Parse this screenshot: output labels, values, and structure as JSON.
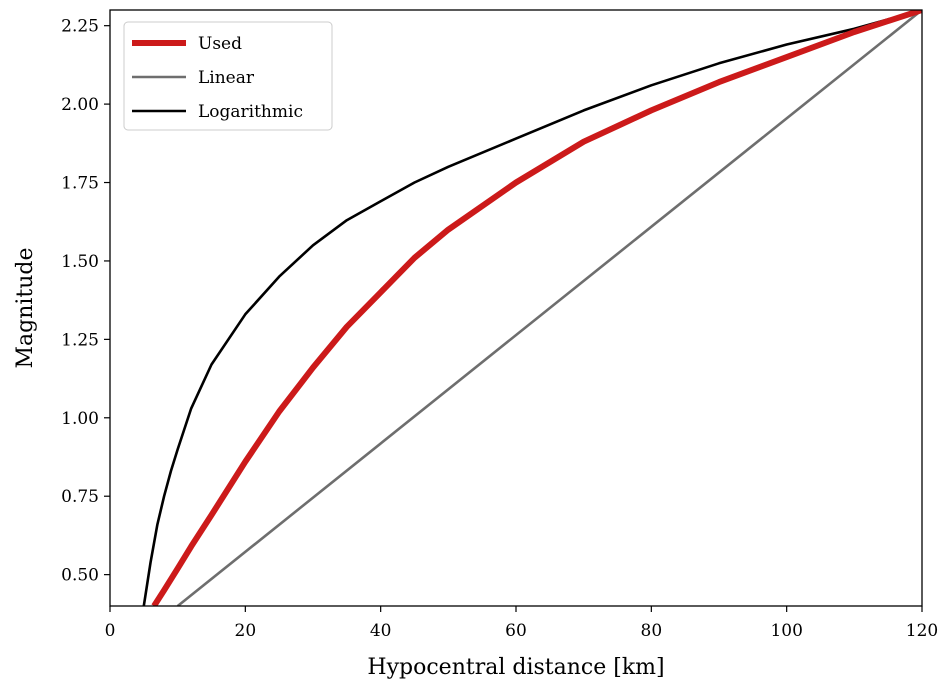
{
  "chart_data": {
    "type": "line",
    "title": "",
    "xlabel": "Hypocentral distance [km]",
    "ylabel": "Magnitude",
    "xlim": [
      0,
      120
    ],
    "ylim": [
      0.4,
      2.3
    ],
    "xticks": [
      0,
      20,
      40,
      60,
      80,
      100,
      120
    ],
    "yticks": [
      0.5,
      0.75,
      1.0,
      1.25,
      1.5,
      1.75,
      2.0,
      2.25
    ],
    "xtick_labels": [
      "0",
      "20",
      "40",
      "60",
      "80",
      "100",
      "120"
    ],
    "ytick_labels": [
      "0.50",
      "0.75",
      "1.00",
      "1.25",
      "1.50",
      "1.75",
      "2.00",
      "2.25"
    ],
    "grid": false,
    "legend_position": "upper-left",
    "series": [
      {
        "name": "Used",
        "color": "#cc1a1a",
        "x": [
          6.5,
          8,
          10,
          12,
          15,
          20,
          25,
          30,
          35,
          40,
          45,
          50,
          60,
          70,
          80,
          90,
          100,
          110,
          120
        ],
        "y": [
          0.4,
          0.45,
          0.52,
          0.59,
          0.69,
          0.86,
          1.02,
          1.16,
          1.29,
          1.4,
          1.51,
          1.6,
          1.75,
          1.88,
          1.98,
          2.07,
          2.15,
          2.23,
          2.3
        ]
      },
      {
        "name": "Linear",
        "color": "#6e6e6e",
        "x": [
          10,
          120
        ],
        "y": [
          0.4,
          2.3
        ]
      },
      {
        "name": "Logarithmic",
        "color": "#000000",
        "x": [
          5,
          5.5,
          6,
          7,
          8,
          9,
          10,
          12,
          15,
          20,
          25,
          30,
          35,
          40,
          45,
          50,
          60,
          70,
          80,
          90,
          100,
          110,
          120
        ],
        "y": [
          0.4,
          0.47,
          0.54,
          0.66,
          0.75,
          0.83,
          0.9,
          1.03,
          1.17,
          1.33,
          1.45,
          1.55,
          1.63,
          1.69,
          1.75,
          1.8,
          1.89,
          1.98,
          2.06,
          2.13,
          2.19,
          2.24,
          2.3
        ]
      }
    ]
  }
}
